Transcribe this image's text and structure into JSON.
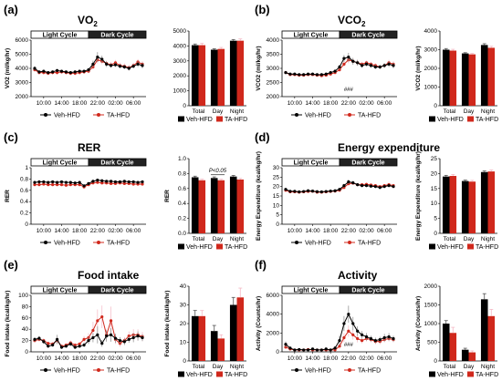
{
  "colors": {
    "veh": "#000000",
    "ta": "#d0281c",
    "err": "#f4b8c4"
  },
  "cycle_labels": {
    "light": "Light Cycle",
    "dark": "Dark Cycle"
  },
  "series_names": {
    "veh": "Veh-HFD",
    "ta": "TA-HFD"
  },
  "chart_data": [
    {
      "id": "a",
      "letter": "(a)",
      "title": "VO",
      "title_sub": "2",
      "line": {
        "type": "line",
        "ylabel": "VO2 (ml/kg/hr)",
        "ylim": [
          2000,
          6000
        ],
        "yticks": [
          2000,
          3000,
          4000,
          5000,
          6000
        ],
        "xtick_labels": [
          "10:00",
          "14:00",
          "18:00",
          "22:00",
          "02:00",
          "06:00"
        ],
        "veh": [
          4000,
          3750,
          3800,
          3700,
          3750,
          3850,
          3800,
          3750,
          3700,
          3750,
          3800,
          3800,
          3900,
          4300,
          4800,
          4650,
          4300,
          4200,
          4250,
          4150,
          4100,
          4000,
          4150,
          4300,
          4200
        ],
        "ta": [
          3900,
          3700,
          3700,
          3650,
          3700,
          3700,
          3750,
          3700,
          3650,
          3650,
          3700,
          3750,
          3800,
          4100,
          4600,
          4500,
          4350,
          4250,
          4400,
          4200,
          4150,
          4050,
          4200,
          4450,
          4300
        ],
        "veh_err": [
          150,
          100,
          100,
          100,
          100,
          100,
          100,
          100,
          100,
          100,
          100,
          100,
          150,
          250,
          350,
          250,
          200,
          150,
          150,
          150,
          150,
          150,
          150,
          200,
          200
        ],
        "ta_err": [
          150,
          150,
          150,
          150,
          150,
          150,
          150,
          150,
          150,
          150,
          150,
          150,
          150,
          200,
          250,
          200,
          200,
          200,
          200,
          200,
          200,
          200,
          200,
          200,
          200
        ]
      },
      "bar": {
        "type": "bar",
        "categories": [
          "Total",
          "Day",
          "Night"
        ],
        "veh": [
          4050,
          3750,
          4350
        ],
        "ta": [
          4050,
          3800,
          4350
        ],
        "veh_err": [
          80,
          60,
          80
        ],
        "ta_err": [
          120,
          100,
          120
        ],
        "ylim": [
          0,
          5000
        ],
        "yticks": [
          0,
          1000,
          2000,
          3000,
          4000,
          5000
        ],
        "ylabel": ""
      }
    },
    {
      "id": "b",
      "letter": "(b)",
      "title": "VCO",
      "title_sub": "2",
      "line": {
        "type": "line",
        "ylabel": "VCO2 (ml/kg/hr)",
        "ylim": [
          2000,
          4000
        ],
        "yticks": [
          2000,
          2500,
          3000,
          3500,
          4000
        ],
        "xtick_labels": [
          "10:00",
          "14:00",
          "18:00",
          "22:00",
          "02:00",
          "06:00"
        ],
        "veh": [
          2850,
          2800,
          2800,
          2780,
          2780,
          2800,
          2800,
          2780,
          2780,
          2800,
          2850,
          2900,
          3050,
          3350,
          3400,
          3250,
          3200,
          3100,
          3150,
          3100,
          3050,
          3050,
          3100,
          3150,
          3100
        ],
        "ta": [
          2850,
          2780,
          2780,
          2760,
          2760,
          2780,
          2780,
          2760,
          2740,
          2760,
          2800,
          2850,
          2950,
          3150,
          3300,
          3250,
          3200,
          3150,
          3200,
          3150,
          3100,
          3050,
          3100,
          3200,
          3150
        ],
        "veh_err": [
          60,
          50,
          50,
          50,
          50,
          50,
          50,
          50,
          50,
          50,
          60,
          60,
          80,
          120,
          150,
          120,
          100,
          80,
          80,
          80,
          80,
          80,
          80,
          100,
          100
        ],
        "ta_err": [
          60,
          50,
          50,
          50,
          50,
          50,
          50,
          50,
          50,
          50,
          60,
          60,
          80,
          100,
          120,
          100,
          100,
          80,
          80,
          80,
          80,
          80,
          80,
          100,
          100
        ],
        "annotation": "###"
      },
      "bar": {
        "type": "bar",
        "categories": [
          "Total",
          "Day",
          "Night"
        ],
        "veh": [
          3000,
          2800,
          3250
        ],
        "ta": [
          2950,
          2750,
          3100
        ],
        "veh_err": [
          60,
          40,
          70
        ],
        "ta_err": [
          70,
          50,
          80
        ],
        "ylim": [
          0,
          4000
        ],
        "yticks": [
          0,
          1000,
          2000,
          3000,
          4000
        ],
        "ylabel": "VCO2 (ml/kg/hr)"
      }
    },
    {
      "id": "c",
      "letter": "(c)",
      "title": "RER",
      "title_sub": "",
      "line": {
        "type": "line",
        "ylabel": "RER",
        "ylim": [
          0.0,
          1.0
        ],
        "yticks": [
          0.0,
          0.2,
          0.4,
          0.6,
          0.8,
          1.0
        ],
        "xtick_labels": [
          "10:00",
          "14:00",
          "18:00",
          "22:00",
          "02:00",
          "06:00"
        ],
        "veh": [
          0.74,
          0.75,
          0.75,
          0.74,
          0.75,
          0.74,
          0.75,
          0.74,
          0.74,
          0.73,
          0.74,
          0.68,
          0.72,
          0.76,
          0.78,
          0.77,
          0.76,
          0.76,
          0.75,
          0.75,
          0.76,
          0.75,
          0.75,
          0.74,
          0.75
        ],
        "ta": [
          0.7,
          0.7,
          0.71,
          0.7,
          0.7,
          0.7,
          0.7,
          0.69,
          0.7,
          0.7,
          0.7,
          0.66,
          0.7,
          0.73,
          0.74,
          0.73,
          0.73,
          0.72,
          0.72,
          0.73,
          0.72,
          0.72,
          0.71,
          0.71,
          0.71
        ],
        "veh_err": [
          0.02,
          0.02,
          0.02,
          0.02,
          0.02,
          0.02,
          0.02,
          0.02,
          0.02,
          0.02,
          0.02,
          0.02,
          0.02,
          0.02,
          0.02,
          0.02,
          0.02,
          0.02,
          0.02,
          0.02,
          0.02,
          0.02,
          0.02,
          0.02,
          0.02
        ],
        "ta_err": [
          0.02,
          0.02,
          0.02,
          0.02,
          0.02,
          0.02,
          0.02,
          0.02,
          0.02,
          0.02,
          0.02,
          0.02,
          0.02,
          0.02,
          0.02,
          0.02,
          0.02,
          0.02,
          0.02,
          0.02,
          0.02,
          0.02,
          0.02,
          0.02,
          0.02
        ]
      },
      "bar": {
        "type": "bar",
        "categories": [
          "Total",
          "Day",
          "Night"
        ],
        "veh": [
          0.75,
          0.74,
          0.76
        ],
        "ta": [
          0.71,
          0.71,
          0.72
        ],
        "veh_err": [
          0.015,
          0.015,
          0.015
        ],
        "ta_err": [
          0.015,
          0.015,
          0.015
        ],
        "ylim": [
          0.0,
          1.0
        ],
        "yticks": [
          0.0,
          0.2,
          0.4,
          0.6,
          0.8,
          1.0
        ],
        "ylabel": "RER",
        "annotation": "P<0.05"
      }
    },
    {
      "id": "d",
      "letter": "(d)",
      "title": "Energy expenditure",
      "title_sub": "",
      "line": {
        "type": "line",
        "ylabel": "Energy Expenditure (kcal/kg/hr)",
        "ylim": [
          0,
          30
        ],
        "yticks": [
          0,
          5,
          10,
          15,
          20,
          25,
          30
        ],
        "xtick_labels": [
          "10:00",
          "14:00",
          "18:00",
          "22:00",
          "02:00",
          "06:00"
        ],
        "veh": [
          18.5,
          17.5,
          17.5,
          17.2,
          17.4,
          17.8,
          17.6,
          17.3,
          17.2,
          17.4,
          17.6,
          17.8,
          18.5,
          20.5,
          22.5,
          22.0,
          21.0,
          20.5,
          20.5,
          20.2,
          20.0,
          19.5,
          20.0,
          20.5,
          20.0
        ],
        "ta": [
          18.0,
          17.2,
          17.2,
          17.0,
          17.2,
          17.4,
          17.5,
          17.0,
          17.0,
          17.2,
          17.4,
          17.6,
          18.0,
          19.5,
          21.5,
          21.8,
          21.0,
          21.0,
          21.2,
          20.8,
          20.5,
          20.0,
          20.5,
          21.0,
          20.5
        ],
        "veh_err": [
          0.6,
          0.5,
          0.5,
          0.5,
          0.5,
          0.5,
          0.5,
          0.5,
          0.5,
          0.5,
          0.5,
          0.5,
          0.6,
          1.0,
          1.2,
          1.0,
          0.8,
          0.8,
          0.8,
          0.8,
          0.8,
          0.8,
          0.8,
          0.8,
          0.8
        ],
        "ta_err": [
          0.6,
          0.5,
          0.5,
          0.5,
          0.5,
          0.5,
          0.5,
          0.5,
          0.5,
          0.5,
          0.5,
          0.5,
          0.6,
          0.8,
          1.0,
          1.0,
          0.8,
          0.8,
          0.8,
          0.8,
          0.8,
          0.8,
          0.8,
          0.8,
          0.8
        ]
      },
      "bar": {
        "type": "bar",
        "categories": [
          "Total",
          "Day",
          "Night"
        ],
        "veh": [
          19.0,
          17.5,
          20.5
        ],
        "ta": [
          19.2,
          17.3,
          20.7
        ],
        "veh_err": [
          0.4,
          0.3,
          0.4
        ],
        "ta_err": [
          0.5,
          0.4,
          0.5
        ],
        "ylim": [
          0,
          25
        ],
        "yticks": [
          0,
          5,
          10,
          15,
          20,
          25
        ],
        "ylabel": "Energy Expenditure (kcal/kg/hr)"
      }
    },
    {
      "id": "e",
      "letter": "(e)",
      "title": "Food intake",
      "title_sub": "",
      "line": {
        "type": "line",
        "ylabel": "Food intake (kcal/kg/hr)",
        "ylim": [
          0,
          100
        ],
        "yticks": [
          0,
          20,
          40,
          60,
          80,
          100
        ],
        "xtick_labels": [
          "10:00",
          "14:00",
          "18:00",
          "22:00",
          "02:00",
          "06:00"
        ],
        "veh": [
          22,
          24,
          18,
          10,
          12,
          22,
          8,
          10,
          14,
          8,
          10,
          12,
          20,
          25,
          30,
          15,
          28,
          30,
          24,
          20,
          18,
          22,
          25,
          28,
          25
        ],
        "ta": [
          20,
          22,
          20,
          15,
          14,
          20,
          10,
          12,
          16,
          12,
          14,
          22,
          25,
          38,
          55,
          62,
          30,
          55,
          22,
          15,
          20,
          28,
          30,
          30,
          27
        ],
        "veh_err": [
          4,
          4,
          4,
          3,
          3,
          8,
          3,
          3,
          4,
          3,
          3,
          4,
          6,
          8,
          15,
          6,
          10,
          12,
          8,
          6,
          6,
          6,
          8,
          8,
          6
        ],
        "ta_err": [
          4,
          4,
          4,
          3,
          3,
          6,
          3,
          3,
          4,
          3,
          3,
          6,
          8,
          15,
          20,
          20,
          10,
          25,
          8,
          6,
          6,
          8,
          10,
          10,
          8
        ]
      },
      "bar": {
        "type": "bar",
        "categories": [
          "Total",
          "Day",
          "Night"
        ],
        "veh": [
          24,
          16,
          30
        ],
        "ta": [
          24,
          12,
          34
        ],
        "veh_err": [
          3,
          3,
          4
        ],
        "ta_err": [
          3,
          2,
          5
        ],
        "ylim": [
          0,
          40
        ],
        "yticks": [
          0,
          10,
          20,
          30,
          40
        ],
        "ylabel": "Food intake (kcal/kg/hr)"
      }
    },
    {
      "id": "f",
      "letter": "(f)",
      "title": "Activity",
      "title_sub": "",
      "line": {
        "type": "line",
        "ylabel": "Activity (Counts/hr)",
        "ylim": [
          0,
          6000
        ],
        "yticks": [
          0,
          2000,
          4000,
          6000
        ],
        "xtick_labels": [
          "10:00",
          "14:00",
          "18:00",
          "22:00",
          "02:00",
          "06:00"
        ],
        "veh": [
          800,
          400,
          200,
          250,
          200,
          200,
          300,
          200,
          200,
          300,
          200,
          400,
          1200,
          3000,
          4000,
          3000,
          2200,
          1800,
          1600,
          1400,
          1200,
          1300,
          1500,
          1600,
          1400
        ],
        "ta": [
          500,
          300,
          200,
          200,
          200,
          250,
          200,
          200,
          200,
          200,
          200,
          200,
          600,
          1500,
          2200,
          1800,
          1400,
          1200,
          1400,
          1300,
          1100,
          1100,
          1300,
          1400,
          1300
        ],
        "veh_err": [
          300,
          150,
          100,
          100,
          100,
          100,
          150,
          100,
          100,
          150,
          100,
          200,
          500,
          800,
          900,
          700,
          500,
          400,
          400,
          300,
          300,
          300,
          400,
          400,
          300
        ],
        "ta_err": [
          200,
          100,
          100,
          100,
          100,
          100,
          100,
          100,
          100,
          100,
          100,
          100,
          300,
          500,
          600,
          500,
          400,
          300,
          300,
          300,
          300,
          300,
          300,
          300,
          300
        ],
        "annotation": "###"
      },
      "bar": {
        "type": "bar",
        "categories": [
          "Total",
          "Day",
          "Night"
        ],
        "veh": [
          1000,
          300,
          1650
        ],
        "ta": [
          750,
          230,
          1200
        ],
        "veh_err": [
          80,
          40,
          150
        ],
        "ta_err": [
          150,
          40,
          180
        ],
        "ylim": [
          0,
          2000
        ],
        "yticks": [
          0,
          500,
          1000,
          1500,
          2000
        ],
        "ylabel": "Activity (Counts/hr)"
      }
    }
  ]
}
